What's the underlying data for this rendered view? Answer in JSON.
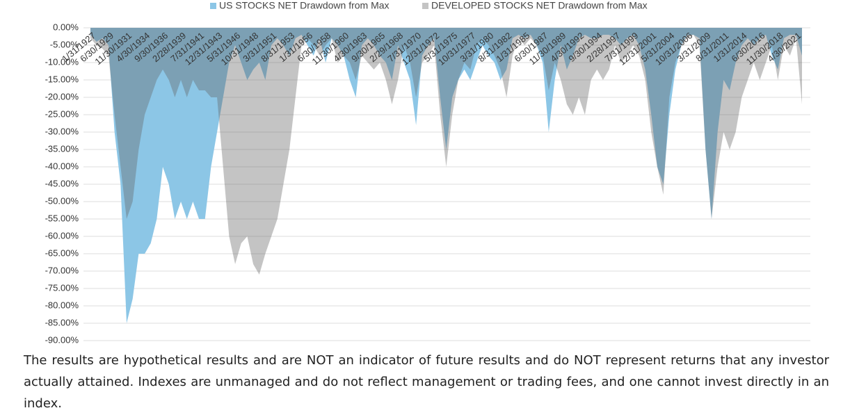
{
  "chart_data": {
    "type": "area",
    "categories": [
      "1/31/1927",
      null,
      null,
      "6/30/1929",
      null,
      null,
      "11/30/1931",
      null,
      null,
      "4/30/1934",
      null,
      null,
      "9/30/1936",
      null,
      null,
      "2/28/1939",
      null,
      null,
      "7/31/1941",
      null,
      null,
      "12/31/1943",
      null,
      null,
      "5/31/1946",
      null,
      null,
      "10/31/1948",
      null,
      null,
      "3/31/1951",
      null,
      null,
      "8/31/1953",
      null,
      null,
      "1/31/1956",
      null,
      null,
      "6/30/1958",
      null,
      null,
      "11/30/1960",
      null,
      null,
      "4/30/1963",
      null,
      null,
      "9/30/1965",
      null,
      null,
      "2/29/1968",
      null,
      null,
      "7/31/1970",
      null,
      null,
      "12/31/1972",
      null,
      null,
      "5/31/1975",
      null,
      null,
      "10/31/1977",
      null,
      null,
      "3/31/1980",
      null,
      null,
      "8/31/1982",
      null,
      null,
      "1/31/1985",
      null,
      null,
      "6/30/1987",
      null,
      null,
      "11/30/1989",
      null,
      null,
      "4/30/1992",
      null,
      null,
      "9/30/1994",
      null,
      null,
      "2/28/1997",
      null,
      null,
      "7/31/1999",
      null,
      null,
      "12/31/2001",
      null,
      null,
      "5/31/2004",
      null,
      null,
      "10/31/2006",
      null,
      null,
      "3/31/2009",
      null,
      null,
      "8/31/2011",
      null,
      null,
      "1/31/2014",
      null,
      null,
      "6/30/2016",
      null,
      null,
      "11/30/2018",
      null,
      null,
      "4/30/2021",
      null
    ],
    "series": [
      {
        "name": "US STOCKS NET Drawdown from Max",
        "color": "#8cc6e6",
        "values": [
          -2,
          -4,
          -3,
          -5,
          -30,
          -45,
          -85,
          -78,
          -65,
          -65,
          -62,
          -55,
          -40,
          -45,
          -55,
          -50,
          -55,
          -50,
          -55,
          -55,
          -40,
          -30,
          -20,
          -10,
          -5,
          -10,
          -15,
          -12,
          -10,
          -15,
          -5,
          -3,
          -5,
          -8,
          -3,
          -2,
          -5,
          -8,
          -3,
          -10,
          -3,
          -5,
          -8,
          -15,
          -20,
          -5,
          -3,
          -5,
          -8,
          -10,
          -15,
          -5,
          -10,
          -15,
          -28,
          -8,
          -5,
          -3,
          -20,
          -35,
          -20,
          -15,
          -12,
          -15,
          -10,
          -5,
          -8,
          -10,
          -15,
          -12,
          -3,
          -2,
          -3,
          -2,
          -5,
          -10,
          -30,
          -15,
          -5,
          -12,
          -8,
          -3,
          -2,
          -3,
          -3,
          -2,
          -2,
          -3,
          -5,
          -3,
          -2,
          -5,
          -12,
          -25,
          -40,
          -45,
          -25,
          -12,
          -5,
          -2,
          -2,
          -3,
          -35,
          -55,
          -30,
          -15,
          -18,
          -10,
          -5,
          -3,
          -5,
          -3,
          -2,
          -8,
          -12,
          -3,
          -2,
          -2,
          -8
        ]
      },
      {
        "name": "DEVELOPED STOCKS NET Drawdown from Max",
        "color": "#c4c4c4",
        "values": [
          -3,
          -5,
          -6,
          -8,
          -25,
          -40,
          -55,
          -50,
          -35,
          -25,
          -20,
          -15,
          -12,
          -15,
          -20,
          -15,
          -20,
          -15,
          -18,
          -18,
          -20,
          -20,
          -40,
          -60,
          -68,
          -62,
          -60,
          -68,
          -71,
          -65,
          -60,
          -55,
          -45,
          -35,
          -20,
          -5,
          -3,
          -5,
          -8,
          -5,
          -3,
          -10,
          -8,
          -10,
          -15,
          -8,
          -10,
          -12,
          -10,
          -15,
          -22,
          -15,
          -5,
          -10,
          -20,
          -10,
          -8,
          -5,
          -25,
          -40,
          -25,
          -15,
          -10,
          -12,
          -5,
          -3,
          -5,
          -8,
          -12,
          -20,
          -8,
          -3,
          -5,
          -3,
          -5,
          -8,
          -18,
          -10,
          -15,
          -22,
          -25,
          -20,
          -25,
          -15,
          -12,
          -15,
          -12,
          -5,
          -10,
          -8,
          -5,
          -8,
          -15,
          -30,
          -40,
          -48,
          -20,
          -10,
          -5,
          -3,
          -2,
          -5,
          -35,
          -55,
          -40,
          -30,
          -35,
          -30,
          -20,
          -15,
          -10,
          -15,
          -10,
          -5,
          -15,
          -5,
          -8,
          -3,
          -22
        ]
      }
    ],
    "ylim": [
      -90,
      0
    ],
    "yticks": [
      {
        "value": 0,
        "label": "0.00%"
      },
      {
        "value": -5,
        "label": "-5.00%"
      },
      {
        "value": -10,
        "label": "-10.00%"
      },
      {
        "value": -15,
        "label": "-15.00%"
      },
      {
        "value": -20,
        "label": "-20.00%"
      },
      {
        "value": -25,
        "label": "-25.00%"
      },
      {
        "value": -30,
        "label": "-30.00%"
      },
      {
        "value": -35,
        "label": "-35.00%"
      },
      {
        "value": -40,
        "label": "-40.00%"
      },
      {
        "value": -45,
        "label": "-45.00%"
      },
      {
        "value": -50,
        "label": "-50.00%"
      },
      {
        "value": -55,
        "label": "-55.00%"
      },
      {
        "value": -60,
        "label": "-60.00%"
      },
      {
        "value": -65,
        "label": "-65.00%"
      },
      {
        "value": -70,
        "label": "-70.00%"
      },
      {
        "value": -75,
        "label": "-75.00%"
      },
      {
        "value": -80,
        "label": "-80.00%"
      },
      {
        "value": -85,
        "label": "-85.00%"
      },
      {
        "value": -90,
        "label": "-90.00%"
      }
    ],
    "grid": true,
    "legend": "top"
  },
  "caption": "The results are hypothetical results and are NOT an indicator of future results and do NOT represent returns that any investor actually attained. Indexes are unmanaged and do not reflect management or trading fees, and one cannot invest directly in an index."
}
